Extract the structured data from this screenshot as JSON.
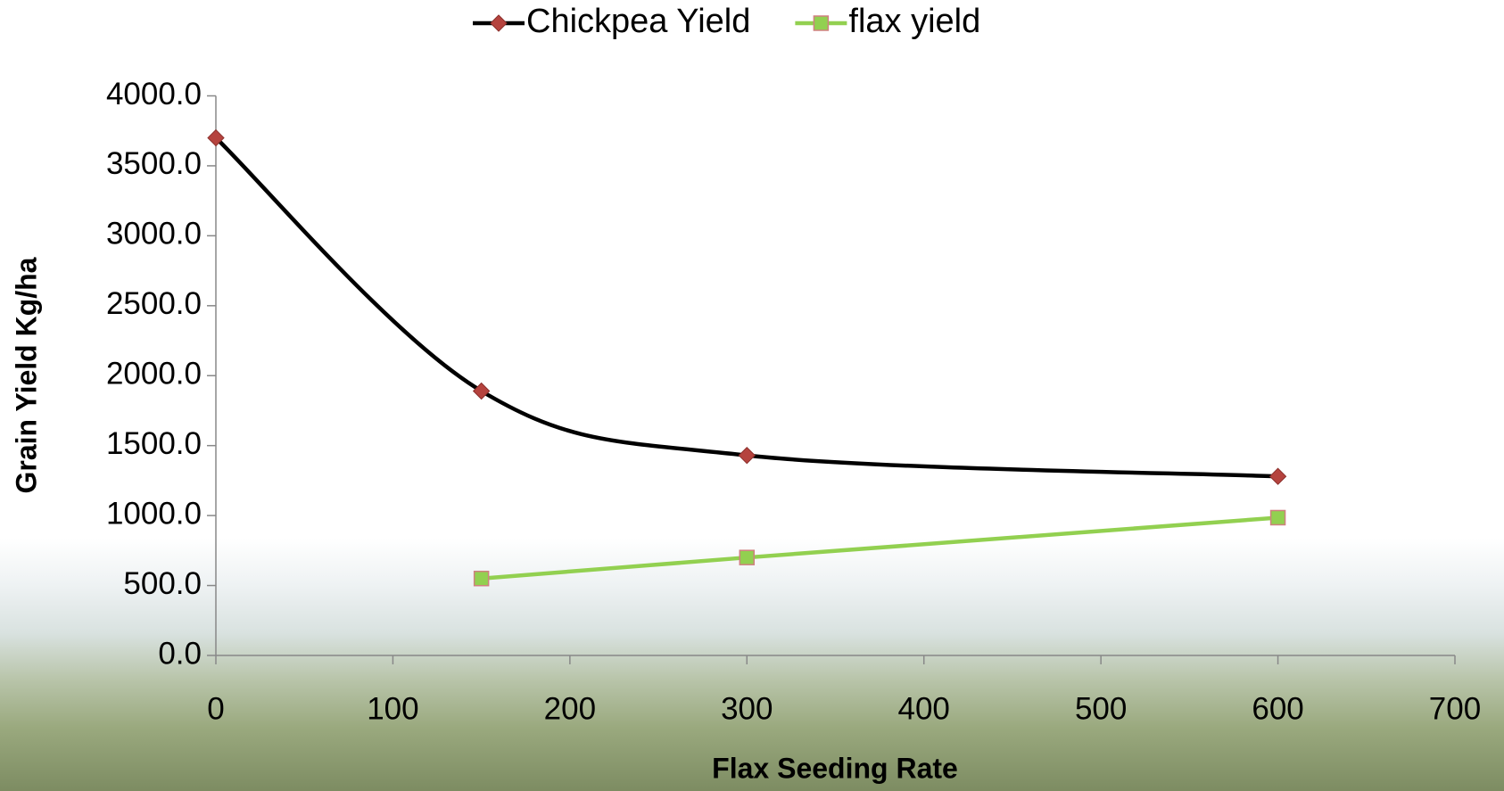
{
  "chart_data": {
    "type": "line",
    "x_label": "Flax Seeding Rate",
    "y_label": "Grain Yield Kg/ha",
    "x": [
      0,
      150,
      300,
      600
    ],
    "series": [
      {
        "name": "Chickpea Yield",
        "color": "#000000",
        "marker": "diamond",
        "marker_color": "#b5433e",
        "smooth": true,
        "values": [
          3700,
          1890,
          1430,
          1280
        ]
      },
      {
        "name": "flax yield",
        "color": "#92d050",
        "marker": "square",
        "marker_color": "#92d050",
        "smooth": false,
        "values": [
          null,
          550,
          700,
          985
        ]
      }
    ],
    "xlim": [
      0,
      700
    ],
    "xticks": [
      0,
      100,
      200,
      300,
      400,
      500,
      600,
      700
    ],
    "ylim": [
      0,
      4000
    ],
    "yticks": [
      {
        "value": 0,
        "label": "0.0"
      },
      {
        "value": 500,
        "label": "500.0"
      },
      {
        "value": 1000,
        "label": "1000.0"
      },
      {
        "value": 1500,
        "label": "1500.0"
      },
      {
        "value": 2000,
        "label": "2000.0"
      },
      {
        "value": 2500,
        "label": "2500.0"
      },
      {
        "value": 3000,
        "label": "3000.0"
      },
      {
        "value": 3500,
        "label": "3500.0"
      },
      {
        "value": 4000,
        "label": "4000.0"
      }
    ],
    "legend": "top"
  }
}
